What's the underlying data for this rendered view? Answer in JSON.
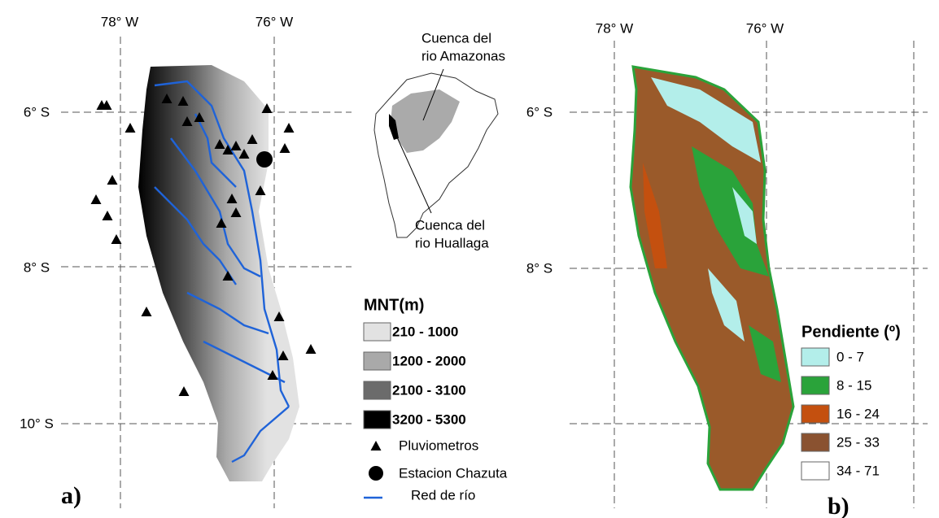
{
  "panel_a": {
    "label": "a)",
    "lon_labels": [
      "78° W",
      "76° W"
    ],
    "lat_labels": [
      "6° S",
      "8° S",
      "10° S"
    ],
    "inset": {
      "amazon": [
        "Cuenca del",
        "rio Amazonas"
      ],
      "huallaga": [
        "Cuenca del",
        "rio Huallaga"
      ]
    },
    "legend": {
      "title": "MNT(m)",
      "items": [
        {
          "label": "210 - 1000",
          "color": "#e2e2e2"
        },
        {
          "label": "1200 - 2000",
          "color": "#a9a9a9"
        },
        {
          "label": "2100 - 3100",
          "color": "#6b6b6b"
        },
        {
          "label": "3200 - 5300",
          "color": "#000000"
        }
      ]
    },
    "symbols": [
      "Pluviometros",
      "Estacion Chazuta",
      "Red de río"
    ]
  },
  "panel_b": {
    "label": "b)",
    "lon_labels": [
      "78° W",
      "76° W"
    ],
    "lat_labels": [
      "6° S",
      "8° S"
    ],
    "legend": {
      "title": "Pendiente (º)",
      "items": [
        {
          "label": "0 - 7",
          "color": "#b3eeea"
        },
        {
          "label": "8 - 15",
          "color": "#2aa33a"
        },
        {
          "label": "16 - 24",
          "color": "#c4500f"
        },
        {
          "label": "25 - 33",
          "color": "#8a5230"
        },
        {
          "label": "34 - 71",
          "color": "#ffffff"
        }
      ]
    }
  }
}
